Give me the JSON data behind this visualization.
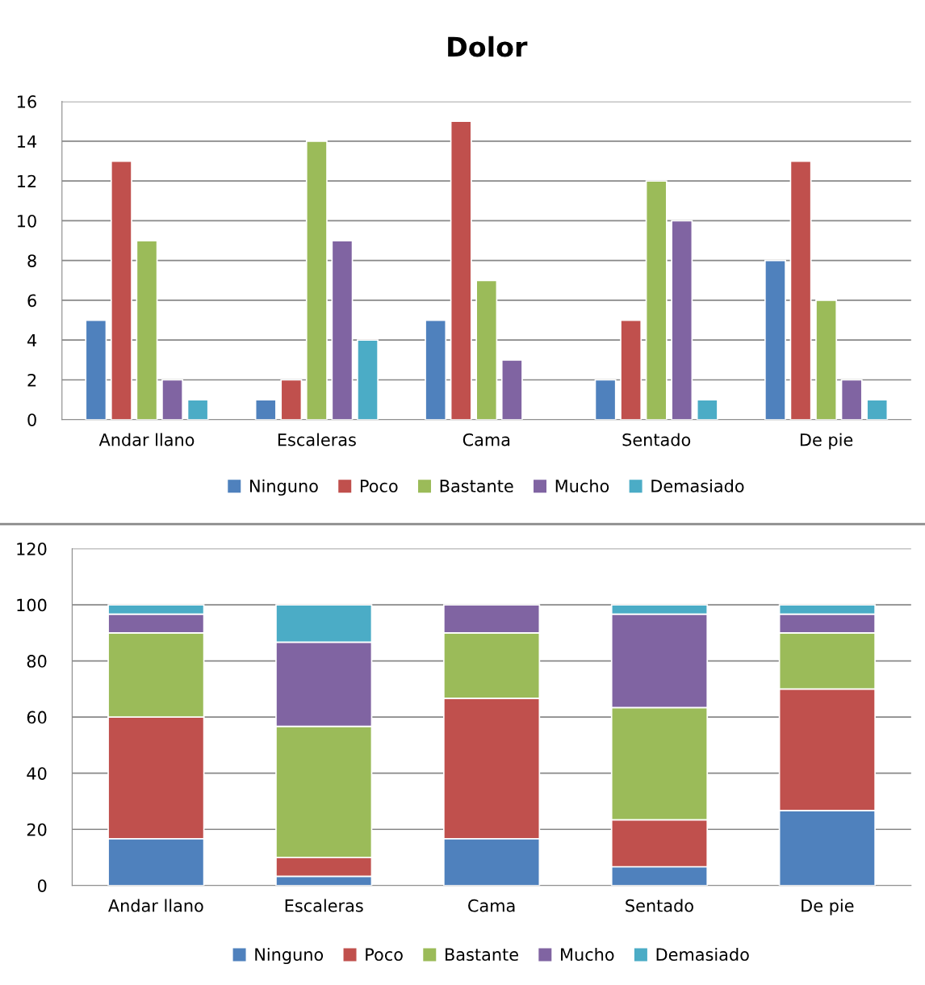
{
  "chart_data": [
    {
      "type": "bar",
      "title": "Dolor",
      "categories": [
        "Andar llano",
        "Escaleras",
        "Cama",
        "Sentado",
        "De pie"
      ],
      "series": [
        {
          "name": "Ninguno",
          "color": "#4f81bd",
          "values": [
            5,
            1,
            5,
            2,
            8
          ]
        },
        {
          "name": "Poco",
          "color": "#c0504d",
          "values": [
            13,
            2,
            15,
            5,
            13
          ]
        },
        {
          "name": "Bastante",
          "color": "#9bbb59",
          "values": [
            9,
            14,
            7,
            12,
            6
          ]
        },
        {
          "name": "Mucho",
          "color": "#8064a2",
          "values": [
            2,
            9,
            3,
            10,
            2
          ]
        },
        {
          "name": "Demasiado",
          "color": "#4bacc6",
          "values": [
            1,
            4,
            0,
            1,
            1
          ]
        }
      ],
      "ylim": [
        0,
        16
      ],
      "yticks": [
        0,
        2,
        4,
        6,
        8,
        10,
        12,
        14,
        16
      ],
      "grid": "y",
      "legend": "bottom"
    },
    {
      "type": "bar",
      "stacked": true,
      "categories": [
        "Andar llano",
        "Escaleras",
        "Cama",
        "Sentado",
        "De pie"
      ],
      "series": [
        {
          "name": "Ninguno",
          "color": "#4f81bd",
          "values": [
            16.7,
            3.3,
            16.7,
            6.7,
            26.7
          ]
        },
        {
          "name": "Poco",
          "color": "#c0504d",
          "values": [
            43.3,
            6.7,
            50,
            16.7,
            43.3
          ]
        },
        {
          "name": "Bastante",
          "color": "#9bbb59",
          "values": [
            30,
            46.7,
            23.3,
            40,
            20
          ]
        },
        {
          "name": "Mucho",
          "color": "#8064a2",
          "values": [
            6.7,
            30,
            10,
            33.3,
            6.7
          ]
        },
        {
          "name": "Demasiado",
          "color": "#4bacc6",
          "values": [
            3.3,
            13.3,
            0,
            3.3,
            3.3
          ]
        }
      ],
      "ylim": [
        0,
        120
      ],
      "yticks": [
        0,
        20,
        40,
        60,
        80,
        100,
        120
      ],
      "grid": "y",
      "legend": "bottom"
    }
  ]
}
